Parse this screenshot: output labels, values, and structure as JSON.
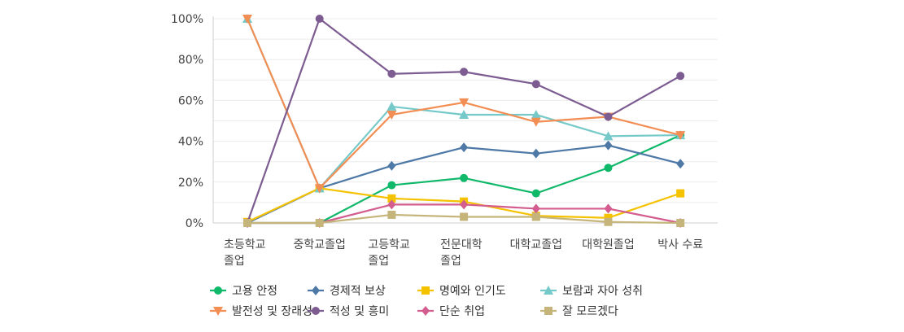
{
  "chart_data": {
    "type": "line",
    "categories": [
      "초등학교\n졸업",
      "중학교졸업",
      "고등학교\n졸업",
      "전문대학\n졸업",
      "대학교졸업",
      "대학원졸업",
      "박사 수료"
    ],
    "y_ticks": [
      "0%",
      "20%",
      "40%",
      "60%",
      "80%",
      "100%"
    ],
    "ylim": [
      0,
      100
    ],
    "grid": true,
    "legend_position": "bottom",
    "series": [
      {
        "name": "고용 안정",
        "color": "#10b86a",
        "marker": "circle",
        "values": [
          0,
          0,
          18.5,
          22,
          14.5,
          27,
          43
        ]
      },
      {
        "name": "경제적 보상",
        "color": "#4e79a7",
        "marker": "diamond",
        "values": [
          0,
          17,
          28,
          37,
          34,
          38,
          29
        ]
      },
      {
        "name": "명예와 인기도",
        "color": "#f5c200",
        "marker": "square",
        "values": [
          0.5,
          17,
          12,
          10.5,
          3.5,
          2.5,
          14.5
        ]
      },
      {
        "name": "보람과 자아 성취",
        "color": "#76c9c9",
        "marker": "triangle-up",
        "values": [
          100,
          17,
          57,
          53,
          53,
          42.5,
          43
        ]
      },
      {
        "name": "발전성 및 장래성",
        "color": "#f28e53",
        "marker": "triangle-down",
        "values": [
          100,
          17,
          53,
          59,
          49.5,
          52,
          43
        ]
      },
      {
        "name": "적성 및 흥미",
        "color": "#7c5c91",
        "marker": "circle",
        "values": [
          0,
          100,
          73,
          74,
          68,
          52,
          72
        ]
      },
      {
        "name": "단순 취업",
        "color": "#d35d8e",
        "marker": "diamond",
        "values": [
          0,
          0,
          9,
          9,
          7,
          7,
          0
        ]
      },
      {
        "name": "잘 모르겠다",
        "color": "#c5b57b",
        "marker": "square",
        "values": [
          0,
          0,
          4,
          3,
          3,
          0.5,
          0
        ]
      }
    ]
  }
}
